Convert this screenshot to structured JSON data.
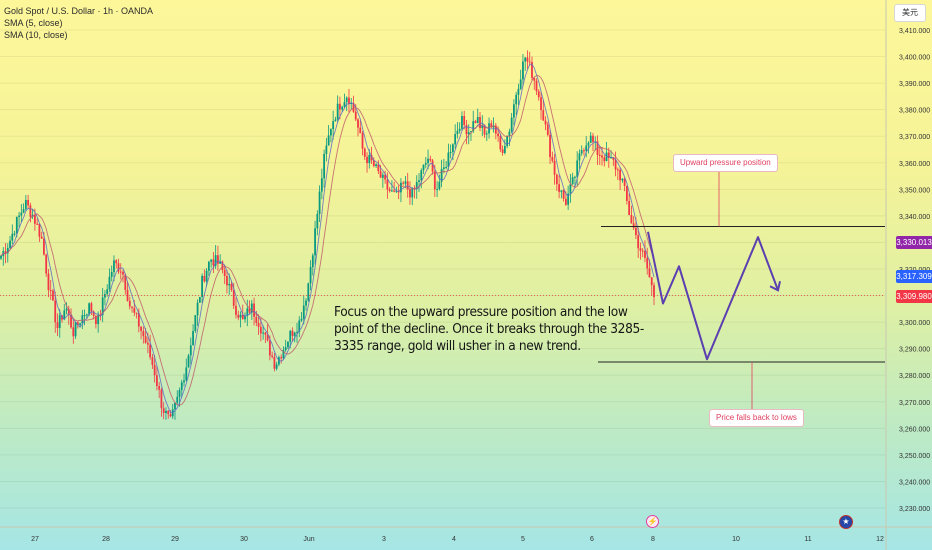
{
  "header": {
    "title": "Gold Spot / U.S. Dollar · 1h · OANDA",
    "indicators": [
      "SMA (5, close)",
      "SMA (10, close)"
    ],
    "currency": "美元"
  },
  "annotation": {
    "text": "Focus on the upward pressure position and the low point of the decline. Once it breaks through the 3285-3335 range, gold will usher in a new trend.",
    "upward_callout": "Upward pressure position",
    "lows_callout": "Price falls back to lows"
  },
  "price_tags": {
    "purple": "3,330.013",
    "blue": "3,317.309",
    "red": "3,309.980"
  },
  "events": {
    "flash_icon": "lightning-event-icon",
    "flag_icon": "us-flag-icon"
  },
  "colors": {
    "up": "#089981",
    "down": "#f23645",
    "sma5": "#5b6bc4",
    "sma10": "#c05a6a",
    "projection": "#5b3fb0",
    "level_line": "#222222",
    "purple_tag": "#9226a8",
    "blue_tag": "#2962ff",
    "red_tag": "#f23645"
  },
  "chart_data": {
    "type": "candlestick",
    "symbol": "XAUUSD",
    "interval": "1h",
    "ylim": [
      3225,
      3415
    ],
    "y_ticks": [
      "3,410.000",
      "3,400.000",
      "3,390.000",
      "3,380.000",
      "3,370.000",
      "3,360.000",
      "3,350.000",
      "3,340.000",
      "3,330.000",
      "3,320.000",
      "3,310.000",
      "3,300.000",
      "3,290.000",
      "3,280.000",
      "3,270.000",
      "3,260.000",
      "3,250.000",
      "3,240.000",
      "3,230.000"
    ],
    "x_labels": [
      "27",
      "28",
      "29",
      "30",
      "Jun",
      "3",
      "4",
      "5",
      "6",
      "8",
      "10",
      "11",
      "12"
    ],
    "close_path": [
      3325,
      3330,
      3338,
      3345,
      3340,
      3332,
      3312,
      3298,
      3306,
      3296,
      3302,
      3306,
      3300,
      3312,
      3322,
      3320,
      3306,
      3300,
      3292,
      3282,
      3268,
      3262,
      3272,
      3284,
      3300,
      3316,
      3324,
      3322,
      3316,
      3306,
      3300,
      3306,
      3300,
      3292,
      3284,
      3290,
      3296,
      3300,
      3312,
      3335,
      3360,
      3375,
      3382,
      3386,
      3377,
      3363,
      3360,
      3355,
      3350,
      3347,
      3352,
      3348,
      3355,
      3362,
      3350,
      3358,
      3368,
      3376,
      3372,
      3377,
      3370,
      3376,
      3364,
      3372,
      3388,
      3400,
      3393,
      3382,
      3366,
      3352,
      3345,
      3353,
      3365,
      3370,
      3364,
      3362,
      3360,
      3354,
      3340,
      3330,
      3322,
      3310
    ],
    "resistance_level": 3336,
    "support_level": 3285,
    "projection_path": [
      [
        3334,
        "Jun 6"
      ],
      [
        3307,
        ""
      ],
      [
        3321,
        ""
      ],
      [
        3286,
        ""
      ],
      [
        3332,
        ""
      ],
      [
        3312,
        ""
      ]
    ],
    "last_price": 3309.98,
    "sma_prices": [
      3317.309,
      3330.013
    ]
  }
}
